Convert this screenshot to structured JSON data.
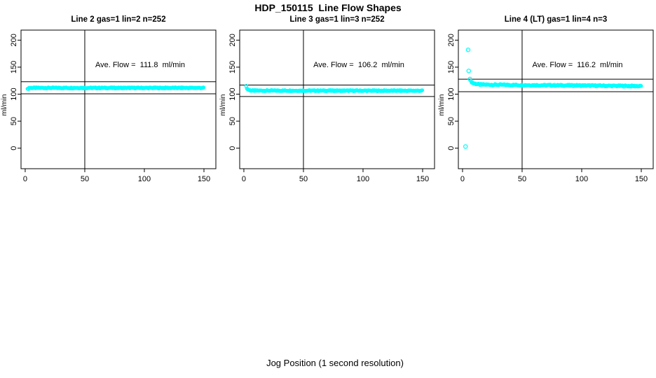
{
  "figure": {
    "title": "HDP_150115  Line Flow Shapes",
    "xlabel": "Jog Position (1 second resolution)"
  },
  "colors": {
    "point": "#00FFFF",
    "axis": "#000000",
    "background": "#FFFFFF"
  },
  "chart_data": [
    {
      "type": "scatter",
      "title": "Line 2 gas=1 lin=2 n=252",
      "annotation": "Ave. Flow =  111.8  ml/min",
      "ave_flow_ml_min": 111.8,
      "n": 252,
      "ylabel": "ml/min",
      "x_ticks": [
        0,
        50,
        100,
        150
      ],
      "y_ticks": [
        0,
        50,
        100,
        150,
        200
      ],
      "xlim": [
        -3.5,
        160
      ],
      "ylim": [
        -38,
        218.6
      ],
      "vline_x": 50,
      "ref_lines_y": [
        123.0,
        100.6
      ],
      "band": {
        "x_start": 2,
        "x_end": 150,
        "step": 0.6,
        "jitter_amp": 0.9,
        "levels": [
          [
            2,
            109.2
          ],
          [
            3.2,
            111.6
          ],
          [
            150,
            111.6
          ]
        ]
      },
      "outliers": []
    },
    {
      "type": "scatter",
      "title": "Line 3 gas=1 lin=3 n=252",
      "annotation": "Ave. Flow =  106.2  ml/min",
      "ave_flow_ml_min": 106.2,
      "n": 252,
      "ylabel": "ml/min",
      "x_ticks": [
        0,
        50,
        100,
        150
      ],
      "y_ticks": [
        0,
        50,
        100,
        150,
        200
      ],
      "xlim": [
        -3.5,
        160
      ],
      "ylim": [
        -38,
        218.6
      ],
      "vline_x": 50,
      "ref_lines_y": [
        116.8,
        95.6
      ],
      "band": {
        "x_start": 2,
        "x_end": 150,
        "step": 0.6,
        "jitter_amp": 0.9,
        "levels": [
          [
            2,
            114.5
          ],
          [
            3,
            109.0
          ],
          [
            6,
            106.6
          ],
          [
            150,
            106.4
          ]
        ]
      },
      "outliers": []
    },
    {
      "type": "scatter",
      "title": "Line 4 (LT) gas=1 lin=4 n=3",
      "annotation": "Ave. Flow =  116.2  ml/min",
      "ave_flow_ml_min": 116.2,
      "n": 3,
      "ylabel": "ml/min",
      "x_ticks": [
        0,
        50,
        100,
        150
      ],
      "y_ticks": [
        0,
        50,
        100,
        150,
        200
      ],
      "xlim": [
        -3.5,
        160
      ],
      "ylim": [
        -38,
        218.6
      ],
      "vline_x": 50,
      "ref_lines_y": [
        127.8,
        104.6
      ],
      "band": {
        "x_start": 7,
        "x_end": 150,
        "step": 0.7,
        "jitter_amp": 1.2,
        "levels": [
          [
            7,
            123.5
          ],
          [
            9,
            120.3
          ],
          [
            14,
            117.8
          ],
          [
            50,
            116.8
          ],
          [
            100,
            116.0
          ],
          [
            150,
            114.9
          ]
        ]
      },
      "outliers": [
        [
          2.5,
          3
        ],
        [
          4.7,
          182
        ],
        [
          5.2,
          143
        ],
        [
          6.2,
          128
        ]
      ]
    }
  ]
}
